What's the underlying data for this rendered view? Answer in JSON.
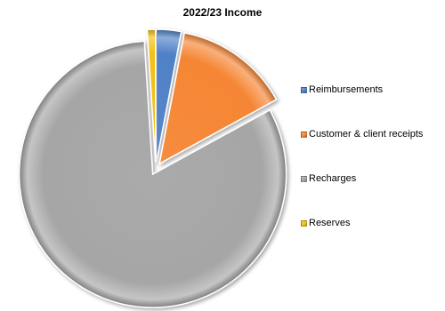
{
  "chart_data": {
    "type": "pie",
    "title": "2022/23 Income",
    "slices": [
      {
        "name": "Reimbursements",
        "value": 3,
        "color": "#4f81c7"
      },
      {
        "name": "Customer & client receipts",
        "value": 14,
        "color": "#f58634"
      },
      {
        "name": "Recharges",
        "value": 82,
        "color": "#a6a6a6"
      },
      {
        "name": "Reserves",
        "value": 1,
        "color": "#f2c012"
      }
    ],
    "exploded": true,
    "start_angle_deg": 0,
    "legend_position": "right"
  }
}
